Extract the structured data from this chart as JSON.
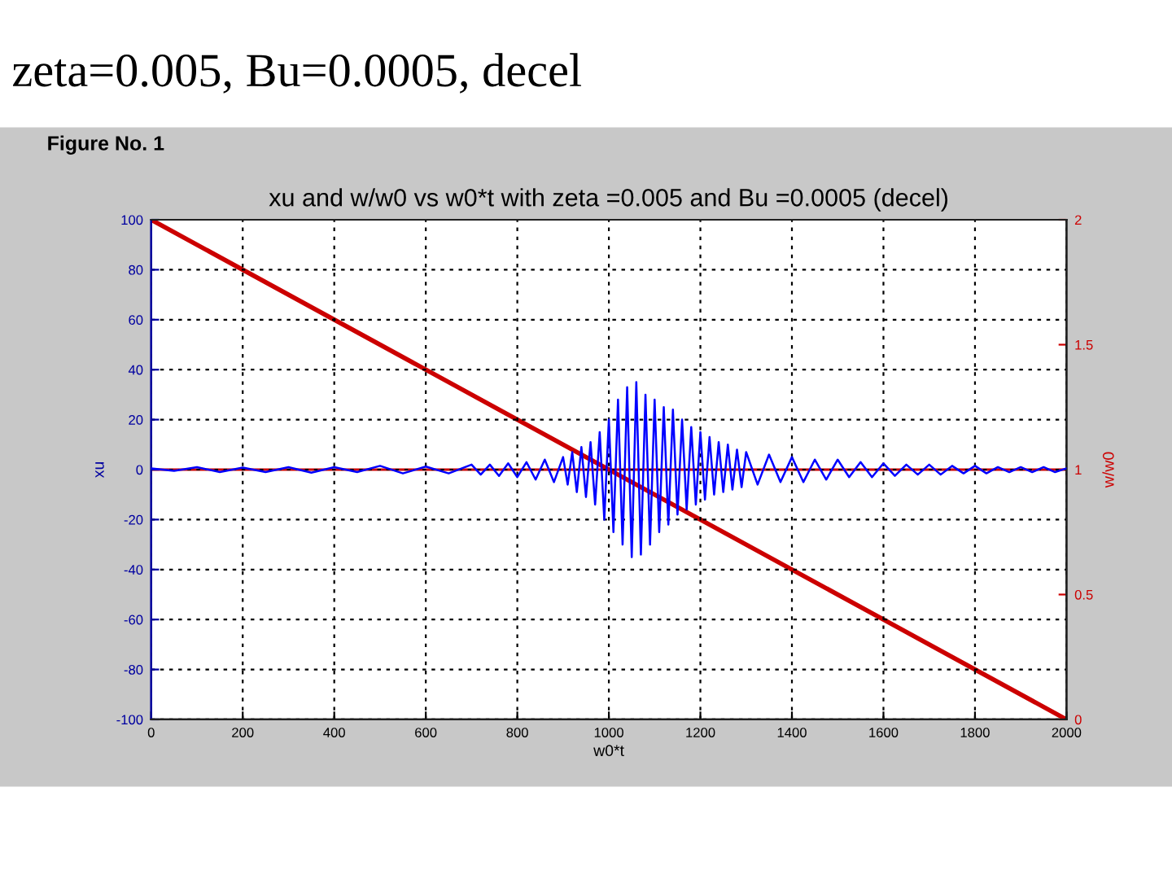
{
  "chart_data": {
    "type": "line",
    "title": "zeta=0.005, Bu=0.0005, decel",
    "subtitle": "xu and w/w0 vs w0*t with zeta =0.005 and Bu =0.0005 (decel)",
    "xlabel": "w0*t",
    "ylabel": "xu",
    "y2label": "w/w0",
    "annotations": [
      "Figure No. 1"
    ],
    "xlim": [
      0,
      2000
    ],
    "xticks": [
      0,
      200,
      400,
      600,
      800,
      1000,
      1200,
      1400,
      1600,
      1800,
      2000
    ],
    "ylim": [
      -100,
      100
    ],
    "yticks": [
      -100,
      -80,
      -60,
      -40,
      -20,
      0,
      20,
      40,
      60,
      80,
      100
    ],
    "y2lim": [
      0,
      2
    ],
    "y2ticks": [
      0,
      0.5,
      1,
      1.5,
      2
    ],
    "grid": true,
    "series": [
      {
        "color": "#0000ff",
        "x": [
          0,
          50,
          100,
          150,
          200,
          250,
          300,
          350,
          400,
          450,
          500,
          550,
          600,
          650,
          700,
          720,
          740,
          760,
          780,
          800,
          820,
          840,
          860,
          880,
          900,
          910,
          920,
          930,
          940,
          950,
          960,
          970,
          980,
          990,
          1000,
          1010,
          1020,
          1030,
          1040,
          1050,
          1060,
          1070,
          1080,
          1090,
          1100,
          1110,
          1120,
          1130,
          1140,
          1150,
          1160,
          1170,
          1180,
          1190,
          1200,
          1210,
          1220,
          1230,
          1240,
          1250,
          1260,
          1270,
          1280,
          1290,
          1300,
          1325,
          1350,
          1375,
          1400,
          1425,
          1450,
          1475,
          1500,
          1525,
          1550,
          1575,
          1600,
          1625,
          1650,
          1675,
          1700,
          1725,
          1750,
          1775,
          1800,
          1825,
          1850,
          1875,
          1900,
          1925,
          1950,
          1975,
          2000
        ],
        "values": [
          0.5,
          -0.5,
          1,
          -1,
          0.8,
          -1,
          1,
          -1.2,
          1,
          -1,
          1.5,
          -1.5,
          1.2,
          -1.5,
          2,
          -2,
          2,
          -2.5,
          2.5,
          -3,
          3,
          -4,
          4,
          -5,
          5,
          -6,
          7,
          -9,
          9,
          -11,
          11,
          -14,
          15,
          -20,
          20,
          -25,
          28,
          -30,
          33,
          -35,
          35,
          -34,
          30,
          -30,
          28,
          -25,
          25,
          -22,
          24,
          -18,
          20,
          -16,
          17,
          -14,
          15,
          -12,
          13,
          -10,
          11,
          -9,
          10,
          -8,
          8,
          -7,
          7,
          -6,
          6,
          -5,
          5,
          -5,
          4,
          -4,
          4,
          -3,
          3,
          -3,
          2.5,
          -2.5,
          2,
          -2,
          2,
          -2,
          1.5,
          -1.5,
          1.5,
          -1.5,
          1,
          -1,
          1,
          -1,
          1,
          -1,
          0.5
        ]
      },
      {
        "color": "#cc0000",
        "axis": "y2",
        "x": [
          0,
          2000
        ],
        "values": [
          2,
          0
        ]
      }
    ],
    "ref_lines": [
      {
        "axis": "y2",
        "value": 1,
        "color": "#cc0000"
      }
    ]
  }
}
